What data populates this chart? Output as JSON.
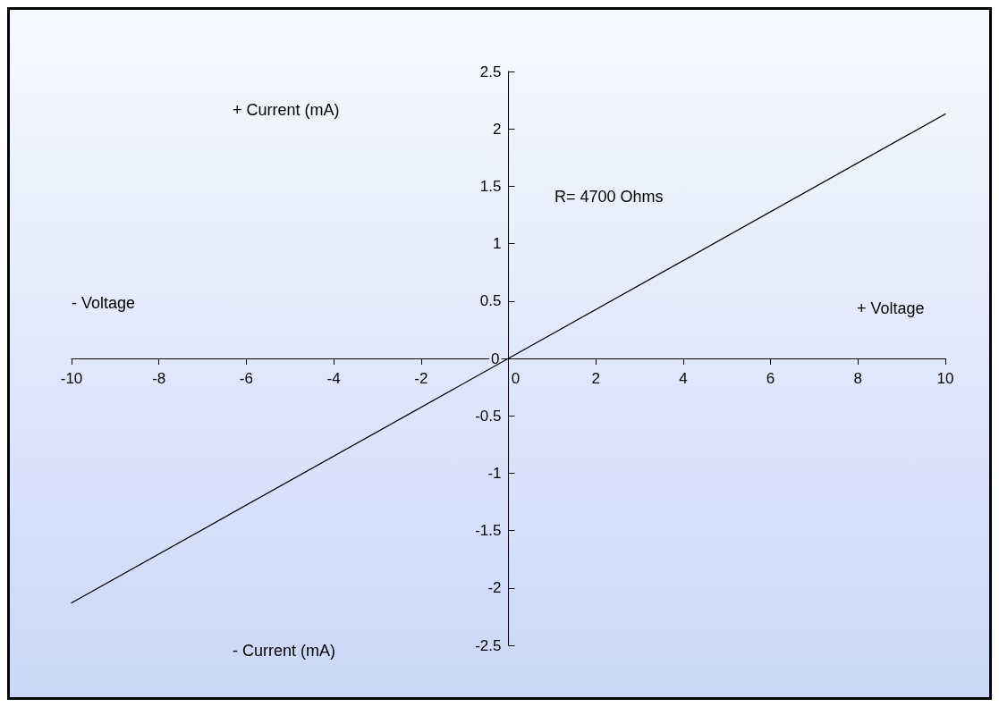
{
  "chart_data": {
    "type": "line",
    "x": [
      -10,
      0,
      10
    ],
    "values": [
      -2.13,
      0,
      2.13
    ],
    "color": "#000000",
    "xlim": [
      -10,
      10
    ],
    "xticks": [
      -10,
      -8,
      -6,
      -4,
      -2,
      0,
      2,
      4,
      6,
      8,
      10
    ],
    "ylim": [
      -2.5,
      2.5
    ],
    "yticks": [
      -2.5,
      -2,
      -1.5,
      -1,
      -0.5,
      0,
      0.5,
      1,
      1.5,
      2,
      2.5
    ],
    "grid": false,
    "marker": "none",
    "line_style": "solid",
    "annotations": [
      "+ Current (mA)",
      "- Current (mA)",
      "- Voltage",
      "+ Voltage",
      "R= 4700 Ohms"
    ]
  }
}
